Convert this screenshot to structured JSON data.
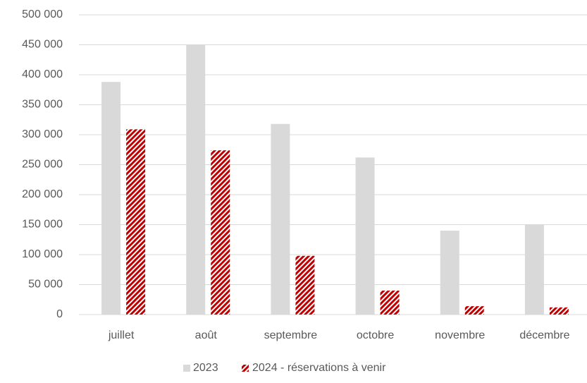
{
  "chart_data": {
    "type": "bar",
    "categories": [
      "juillet",
      "août",
      "septembre",
      "octobre",
      "novembre",
      "décembre"
    ],
    "series": [
      {
        "name": "2023",
        "color": "#d9d9d9",
        "values": [
          388000,
          450000,
          318000,
          262000,
          140000,
          150000
        ]
      },
      {
        "name": "2024 - réservations à venir",
        "color": "#c00000",
        "values": [
          309000,
          274000,
          98000,
          40000,
          14000,
          12000
        ]
      }
    ],
    "ylim": [
      0,
      500000
    ],
    "yticks": [
      {
        "value": 0,
        "label": "0"
      },
      {
        "value": 50000,
        "label": "50 000"
      },
      {
        "value": 100000,
        "label": "100 000"
      },
      {
        "value": 150000,
        "label": "150 000"
      },
      {
        "value": 200000,
        "label": "200 000"
      },
      {
        "value": 250000,
        "label": "250 000"
      },
      {
        "value": 300000,
        "label": "300 000"
      },
      {
        "value": 350000,
        "label": "350 000"
      },
      {
        "value": 400000,
        "label": "400 000"
      },
      {
        "value": 450000,
        "label": "450 000"
      },
      {
        "value": 500000,
        "label": "500 000"
      }
    ],
    "grid": true,
    "legend": "bottom"
  }
}
